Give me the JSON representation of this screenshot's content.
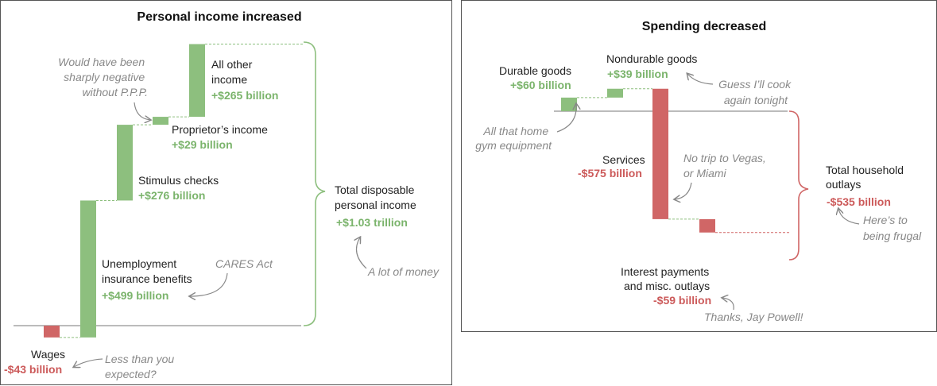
{
  "chart_data": [
    {
      "type": "waterfall",
      "title": "Personal income increased",
      "unit": "billion",
      "steps": [
        {
          "name": "Wages",
          "label": "Wages",
          "value": -43,
          "value_label": "-$43 billion",
          "note": "Less than you expected?"
        },
        {
          "name": "Unemployment",
          "label": [
            "Unemployment",
            "insurance benefits"
          ],
          "value": 499,
          "value_label": "+$499 billion",
          "note": "CARES Act"
        },
        {
          "name": "Stimulus",
          "label": [
            "Stimulus checks"
          ],
          "value": 276,
          "value_label": "+$276 billion"
        },
        {
          "name": "Proprietor",
          "label": [
            "Proprietor’s income"
          ],
          "value": 29,
          "value_label": "+$29 billion",
          "note": [
            "Would have been",
            "sharply negative",
            "without P.P.P."
          ]
        },
        {
          "name": "Other",
          "label": [
            "All other",
            "income"
          ],
          "value": 265,
          "value_label": "+$265 billion"
        }
      ],
      "total": {
        "label": [
          "Total disposable",
          "personal income"
        ],
        "value_label": "+$1.03 trillion",
        "note": "A lot of money"
      },
      "colors": {
        "positive": "#8dbf7e",
        "negative": "#d06666"
      }
    },
    {
      "type": "waterfall",
      "title": "Spending decreased",
      "unit": "billion",
      "steps": [
        {
          "name": "Durable",
          "label": [
            "Durable goods"
          ],
          "value": 60,
          "value_label": "+$60 billion",
          "note": [
            "All that home",
            "gym equipment"
          ]
        },
        {
          "name": "Nondurable",
          "label": [
            "Nondurable goods"
          ],
          "value": 39,
          "value_label": "+$39 billion",
          "note": [
            "Guess I’ll cook",
            "again tonight"
          ]
        },
        {
          "name": "Services",
          "label": [
            "Services"
          ],
          "value": -575,
          "value_label": "-$575 billion",
          "note": [
            "No trip to Vegas,",
            "or Miami"
          ]
        },
        {
          "name": "Interest",
          "label": [
            "Interest payments",
            "and misc. outlays"
          ],
          "value": -59,
          "value_label": "-$59 billion",
          "note": "Thanks, Jay Powell!"
        }
      ],
      "total": {
        "label": [
          "Total household",
          "outlays"
        ],
        "value_label": "-$535 billion",
        "note": [
          "Here’s to",
          "being frugal"
        ]
      },
      "colors": {
        "positive": "#8dbf7e",
        "negative": "#d06666"
      }
    }
  ]
}
